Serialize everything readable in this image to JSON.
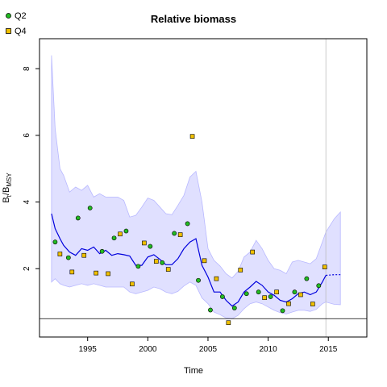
{
  "chart_data": {
    "type": "scatter",
    "title": "Relative biomass",
    "xlabel": "Time",
    "ylabel": "B_t/B_MSY",
    "xlim": [
      1991.0,
      2018.2
    ],
    "ylim": [
      -0.05,
      8.9
    ],
    "x_ticks": [
      1995,
      2000,
      2005,
      2010,
      2015
    ],
    "y_ticks": [
      2,
      4,
      6,
      8
    ],
    "grid": false,
    "legend_position": "top-left",
    "reference_line_y": 0.5,
    "vertical_line_x": 2014.8,
    "colors": {
      "estimate_line": "#0000dd",
      "ci_fill": "#e0e0ff",
      "ci_edge": "#b8b8ff",
      "q2_fill": "#22bb22",
      "q4_fill": "#f0c000",
      "frame": "#000000",
      "vline": "#cccccc"
    },
    "series": [
      {
        "name": "Q2",
        "marker": "circle",
        "x": [
          1992.3,
          1993.4,
          1994.2,
          1995.2,
          1996.2,
          1997.2,
          1998.2,
          1999.2,
          2000.2,
          2001.2,
          2002.2,
          2003.3,
          2004.2,
          2005.2,
          2006.2,
          2007.2,
          2008.2,
          2009.2,
          2010.2,
          2011.2,
          2012.2,
          2013.2,
          2014.2
        ],
        "y": [
          2.8,
          2.33,
          3.52,
          3.82,
          2.52,
          2.92,
          3.13,
          2.07,
          2.67,
          2.18,
          3.06,
          3.35,
          1.65,
          0.76,
          1.16,
          0.82,
          1.25,
          1.3,
          1.16,
          0.74,
          1.3,
          1.7,
          1.49
        ]
      },
      {
        "name": "Q4",
        "marker": "square",
        "x": [
          1992.7,
          1993.7,
          1994.7,
          1995.7,
          1996.7,
          1997.7,
          1998.7,
          1999.7,
          2000.7,
          2001.7,
          2002.7,
          2003.7,
          2004.7,
          2005.7,
          2006.7,
          2007.7,
          2008.7,
          2009.7,
          2010.7,
          2011.7,
          2012.7,
          2013.7,
          2014.7
        ],
        "y": [
          2.44,
          1.9,
          2.4,
          1.87,
          1.85,
          3.04,
          1.54,
          2.77,
          2.22,
          1.98,
          3.02,
          5.97,
          2.24,
          1.7,
          0.38,
          1.96,
          2.5,
          1.13,
          1.3,
          0.95,
          1.22,
          0.94,
          2.05
        ]
      }
    ],
    "estimate": {
      "x": [
        1992.0,
        1992.3,
        1992.7,
        1993.0,
        1993.5,
        1994.0,
        1994.5,
        1995.0,
        1995.5,
        1996.0,
        1996.5,
        1997.0,
        1997.5,
        1998.0,
        1998.5,
        1999.0,
        1999.5,
        2000.0,
        2000.5,
        2001.0,
        2001.5,
        2002.0,
        2002.5,
        2003.0,
        2003.5,
        2004.0,
        2004.5,
        2005.0,
        2005.5,
        2006.0,
        2006.5,
        2007.0,
        2007.5,
        2008.0,
        2008.5,
        2009.0,
        2009.5,
        2010.0,
        2010.5,
        2011.0,
        2011.5,
        2012.0,
        2012.5,
        2013.0,
        2013.5,
        2014.0,
        2014.5,
        2014.8
      ],
      "y": [
        3.65,
        3.2,
        2.9,
        2.7,
        2.5,
        2.4,
        2.6,
        2.55,
        2.65,
        2.45,
        2.55,
        2.4,
        2.45,
        2.42,
        2.38,
        2.1,
        2.1,
        2.35,
        2.42,
        2.28,
        2.12,
        2.12,
        2.3,
        2.6,
        2.8,
        2.9,
        2.1,
        1.75,
        1.3,
        1.3,
        1.05,
        0.88,
        1.0,
        1.3,
        1.45,
        1.62,
        1.5,
        1.3,
        1.2,
        1.05,
        1.0,
        1.1,
        1.25,
        1.3,
        1.22,
        1.3,
        1.6,
        1.8
      ]
    },
    "ci_upper": [
      8.4,
      6.2,
      5.0,
      4.8,
      4.3,
      4.45,
      4.35,
      4.5,
      4.15,
      4.25,
      4.15,
      4.15,
      4.15,
      4.05,
      3.55,
      3.6,
      3.85,
      4.12,
      4.05,
      3.85,
      3.65,
      3.62,
      3.9,
      4.2,
      4.75,
      4.92,
      4.0,
      2.6,
      2.25,
      2.08,
      1.85,
      1.72,
      1.92,
      2.35,
      2.5,
      2.85,
      2.6,
      2.25,
      2.0,
      1.95,
      1.85,
      2.2,
      2.25,
      2.2,
      2.15,
      2.3,
      2.8,
      3.1
    ],
    "ci_lower": [
      1.6,
      1.7,
      1.55,
      1.5,
      1.45,
      1.5,
      1.55,
      1.5,
      1.55,
      1.5,
      1.45,
      1.45,
      1.45,
      1.45,
      1.3,
      1.25,
      1.3,
      1.35,
      1.45,
      1.4,
      1.3,
      1.25,
      1.32,
      1.48,
      1.6,
      1.5,
      1.12,
      0.95,
      0.7,
      0.62,
      0.52,
      0.5,
      0.6,
      0.8,
      0.95,
      1.0,
      0.95,
      0.85,
      0.75,
      0.68,
      0.64,
      0.7,
      0.75,
      0.75,
      0.72,
      0.78,
      0.95,
      1.0
    ],
    "forecast": {
      "x": [
        2014.8,
        2015.5,
        2016.0
      ],
      "y": [
        1.8,
        1.82,
        1.82
      ],
      "ci_upper": [
        3.1,
        3.5,
        3.7
      ],
      "ci_lower": [
        1.0,
        0.93,
        0.92
      ]
    }
  },
  "legend": {
    "q2_label": "Q2",
    "q4_label": "Q4"
  }
}
